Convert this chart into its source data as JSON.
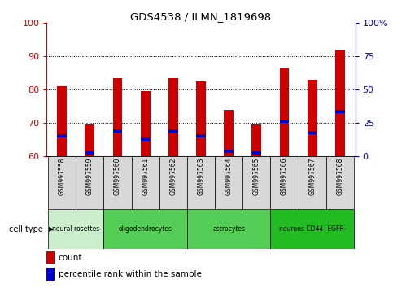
{
  "title": "GDS4538 / ILMN_1819698",
  "samples": [
    "GSM997558",
    "GSM997559",
    "GSM997560",
    "GSM997561",
    "GSM997562",
    "GSM997563",
    "GSM997564",
    "GSM997565",
    "GSM997566",
    "GSM997567",
    "GSM997568"
  ],
  "count_values": [
    81,
    69.5,
    83.5,
    79.5,
    83.5,
    82.5,
    74,
    69.5,
    86.5,
    83,
    92
  ],
  "percentile_values": [
    66,
    61,
    67.5,
    65,
    67.5,
    66,
    61.5,
    61,
    70.5,
    67,
    73.5
  ],
  "y_min": 60,
  "y_max": 100,
  "y_ticks_left": [
    60,
    70,
    80,
    90,
    100
  ],
  "y_ticks_right": [
    0,
    25,
    50,
    75,
    100
  ],
  "cell_type_spans": [
    {
      "label": "neural rosettes",
      "start": 0,
      "end": 2,
      "color": "#cceecc"
    },
    {
      "label": "oligodendrocytes",
      "start": 2,
      "end": 5,
      "color": "#55cc55"
    },
    {
      "label": "astrocytes",
      "start": 5,
      "end": 8,
      "color": "#55cc55"
    },
    {
      "label": "neurons CD44- EGFR-",
      "start": 8,
      "end": 11,
      "color": "#22bb22"
    }
  ],
  "bar_color": "#CC0000",
  "percentile_color": "#0000CC",
  "bar_width": 0.35,
  "left_tick_color": "#CC0000",
  "right_tick_color": "#0000CC",
  "cell_type_label": "cell type",
  "legend_count": "count",
  "legend_percentile": "percentile rank within the sample",
  "background_color": "#ffffff",
  "sample_box_color": "#d8d8d8",
  "grid_yticks": [
    70,
    80,
    90
  ]
}
